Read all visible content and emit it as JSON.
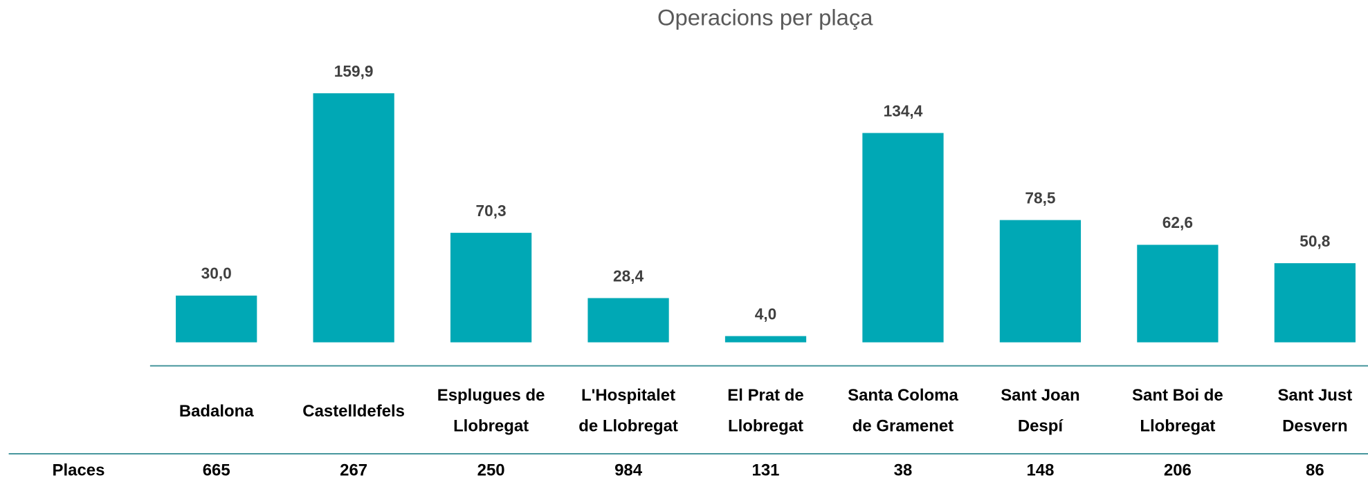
{
  "chart_data": {
    "type": "bar",
    "title": "Operacions per plaça",
    "categories": [
      [
        "Badalona"
      ],
      [
        "Castelldefels"
      ],
      [
        "Esplugues de",
        "Llobregat"
      ],
      [
        "L'Hospitalet",
        "de Llobregat"
      ],
      [
        "El Prat de",
        "Llobregat"
      ],
      [
        "Santa Coloma",
        "de Gramenet"
      ],
      [
        "Sant Joan",
        "Despí"
      ],
      [
        "Sant Boi de",
        "Llobregat"
      ],
      [
        "Sant Just",
        "Desvern"
      ]
    ],
    "values": [
      30.0,
      159.9,
      70.3,
      28.4,
      4.0,
      134.4,
      78.5,
      62.6,
      50.8
    ],
    "value_labels": [
      "30,0",
      "159,9",
      "70,3",
      "28,4",
      "4,0",
      "134,4",
      "78,5",
      "62,6",
      "50,8"
    ],
    "color": "#00a8b5"
  },
  "table": {
    "header": "Places",
    "values": [
      665,
      267,
      250,
      984,
      131,
      38,
      148,
      206,
      86
    ]
  }
}
